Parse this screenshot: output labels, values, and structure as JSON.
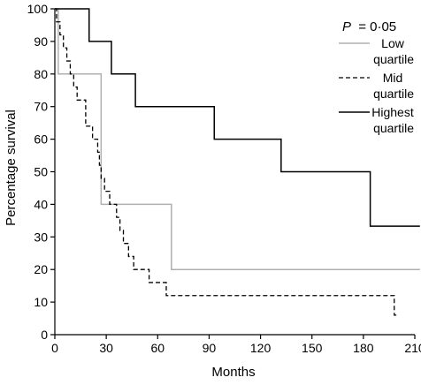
{
  "chart_data": {
    "type": "line",
    "title": "",
    "xlabel": "Months",
    "ylabel": "Percentage survival",
    "xlim": [
      0,
      210
    ],
    "ylim": [
      0,
      100
    ],
    "x_ticks": [
      0,
      30,
      60,
      90,
      120,
      150,
      180,
      210
    ],
    "y_ticks": [
      0,
      10,
      20,
      30,
      40,
      50,
      60,
      70,
      80,
      90,
      100
    ],
    "grid": false,
    "legend_position": "top-right",
    "annotation": {
      "p_label": "P",
      "p_value": "= 0·05"
    },
    "series": [
      {
        "name_line1": "Low",
        "name_line2": "quartile",
        "style": "solid",
        "color": "#b0b0b0",
        "x": [
          0,
          2,
          27,
          68,
          213
        ],
        "y": [
          100,
          80,
          40,
          20,
          20
        ]
      },
      {
        "name_line1": "Mid",
        "name_line2": "quartile",
        "style": "dashed",
        "color": "#000000",
        "x": [
          0,
          1,
          3,
          5,
          7,
          9,
          11,
          13,
          18,
          22,
          25,
          26,
          27,
          29,
          32,
          36,
          38,
          40,
          43,
          46,
          55,
          65,
          68,
          70,
          197,
          198,
          200
        ],
        "y": [
          100,
          96,
          92,
          88,
          84,
          80,
          76,
          72,
          64,
          60,
          56,
          52,
          48,
          44,
          40,
          36,
          32,
          28,
          24,
          20,
          16,
          12,
          12,
          12,
          12,
          6,
          6
        ]
      },
      {
        "name_line1": "Highest",
        "name_line2": "quartile",
        "style": "solid",
        "color": "#000000",
        "x": [
          0,
          20,
          33,
          47,
          93,
          132,
          184,
          213
        ],
        "y": [
          100,
          90,
          80,
          70,
          60,
          50,
          33.3,
          33.3
        ]
      }
    ]
  }
}
